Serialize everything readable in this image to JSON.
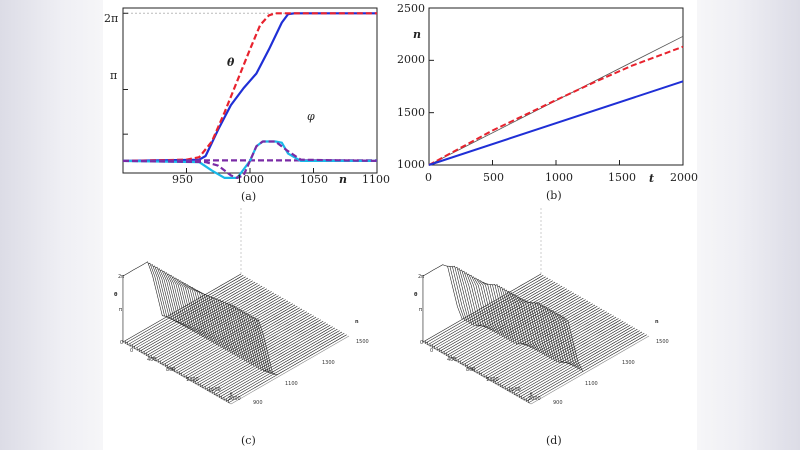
{
  "chart_data": [
    {
      "id": "a",
      "type": "line",
      "caption": "(a)",
      "xlabel": "n",
      "xlim": [
        900,
        1100
      ],
      "ylim": [
        -0.3,
        6.5
      ],
      "xticks": [
        "950",
        "1000",
        "1050",
        "1100"
      ],
      "yticks": [
        "2π",
        "π"
      ],
      "annotations": [
        "θ",
        "φ"
      ],
      "series": [
        {
          "name": "θ solid",
          "color": "#1f2fd6",
          "style": "solid",
          "x": [
            900,
            960,
            965,
            975,
            985,
            995,
            1000,
            1005,
            1015,
            1025,
            1030,
            1035,
            1100
          ],
          "y": [
            0.2,
            0.25,
            0.4,
            1.5,
            2.5,
            3.2,
            3.5,
            3.8,
            4.8,
            5.9,
            6.25,
            6.283,
            6.283
          ]
        },
        {
          "name": "θ dashed",
          "color": "#e8232e",
          "style": "dashed",
          "x": [
            900,
            950,
            960,
            970,
            980,
            990,
            1000,
            1008,
            1015,
            1020,
            1100
          ],
          "y": [
            0.2,
            0.25,
            0.35,
            1.0,
            2.2,
            3.5,
            4.8,
            5.8,
            6.2,
            6.283,
            6.283
          ]
        },
        {
          "name": "θ dashed 2",
          "color": "#7a2ba6",
          "style": "dashed",
          "x": [
            900,
            960,
            1100
          ],
          "y": [
            0.2,
            0.22,
            0.22
          ]
        },
        {
          "name": "φ solid",
          "color": "#19b8e8",
          "style": "solid",
          "x": [
            900,
            960,
            970,
            980,
            990,
            1000,
            1005,
            1010,
            1020,
            1025,
            1030,
            1040,
            1100
          ],
          "y": [
            0.2,
            0.15,
            -0.2,
            -0.5,
            -0.5,
            0.2,
            0.8,
            1.0,
            1.0,
            0.95,
            0.5,
            0.2,
            0.2
          ]
        },
        {
          "name": "φ dashed",
          "color": "#7a2ba6",
          "style": "dashed",
          "x": [
            900,
            965,
            975,
            985,
            990,
            995,
            1000,
            1005,
            1010,
            1020,
            1030,
            1040,
            1100
          ],
          "y": [
            0.2,
            0.15,
            0.0,
            -0.4,
            -0.5,
            -0.4,
            0.2,
            0.8,
            1.0,
            1.0,
            0.6,
            0.25,
            0.2
          ]
        }
      ]
    },
    {
      "id": "b",
      "type": "line",
      "caption": "(b)",
      "xlabel": "t",
      "ylabel": "n",
      "xlim": [
        0,
        2000
      ],
      "ylim": [
        1000,
        2500
      ],
      "xticks": [
        "0",
        "500",
        "1000",
        "1500",
        "2000"
      ],
      "yticks": [
        "1000",
        "1500",
        "2000",
        "2500"
      ],
      "series": [
        {
          "name": "reference",
          "color": "#555555",
          "style": "thin",
          "x": [
            0,
            2000
          ],
          "y": [
            1000,
            2230
          ]
        },
        {
          "name": "dashed",
          "color": "#e8232e",
          "style": "dashed",
          "x": [
            0,
            500,
            1000,
            1300,
            1600,
            2000
          ],
          "y": [
            1000,
            1330,
            1620,
            1790,
            1950,
            2130
          ]
        },
        {
          "name": "solid",
          "color": "#1f2fd6",
          "style": "solid",
          "x": [
            0,
            2000
          ],
          "y": [
            1000,
            1800
          ]
        }
      ]
    },
    {
      "id": "c",
      "type": "3d-waterfall",
      "caption": "(c)",
      "zlabel": "θ",
      "axis_label_front": "t",
      "axis_label_side": "n",
      "zticks": [
        "2π",
        "π",
        "0"
      ],
      "front_ticks": [
        "0",
        "400",
        "800",
        "1200",
        "1600",
        "2000"
      ],
      "side_ticks": [
        "900",
        "1100",
        "1300",
        "1500"
      ]
    },
    {
      "id": "d",
      "type": "3d-waterfall",
      "caption": "(d)",
      "zlabel": "θ",
      "axis_label_front": "t",
      "axis_label_side": "n",
      "zticks": [
        "2π",
        "π",
        "0"
      ],
      "front_ticks": [
        "0",
        "400",
        "800",
        "1200",
        "1600",
        "2000"
      ],
      "side_ticks": [
        "900",
        "1100",
        "1300",
        "1500"
      ]
    }
  ]
}
